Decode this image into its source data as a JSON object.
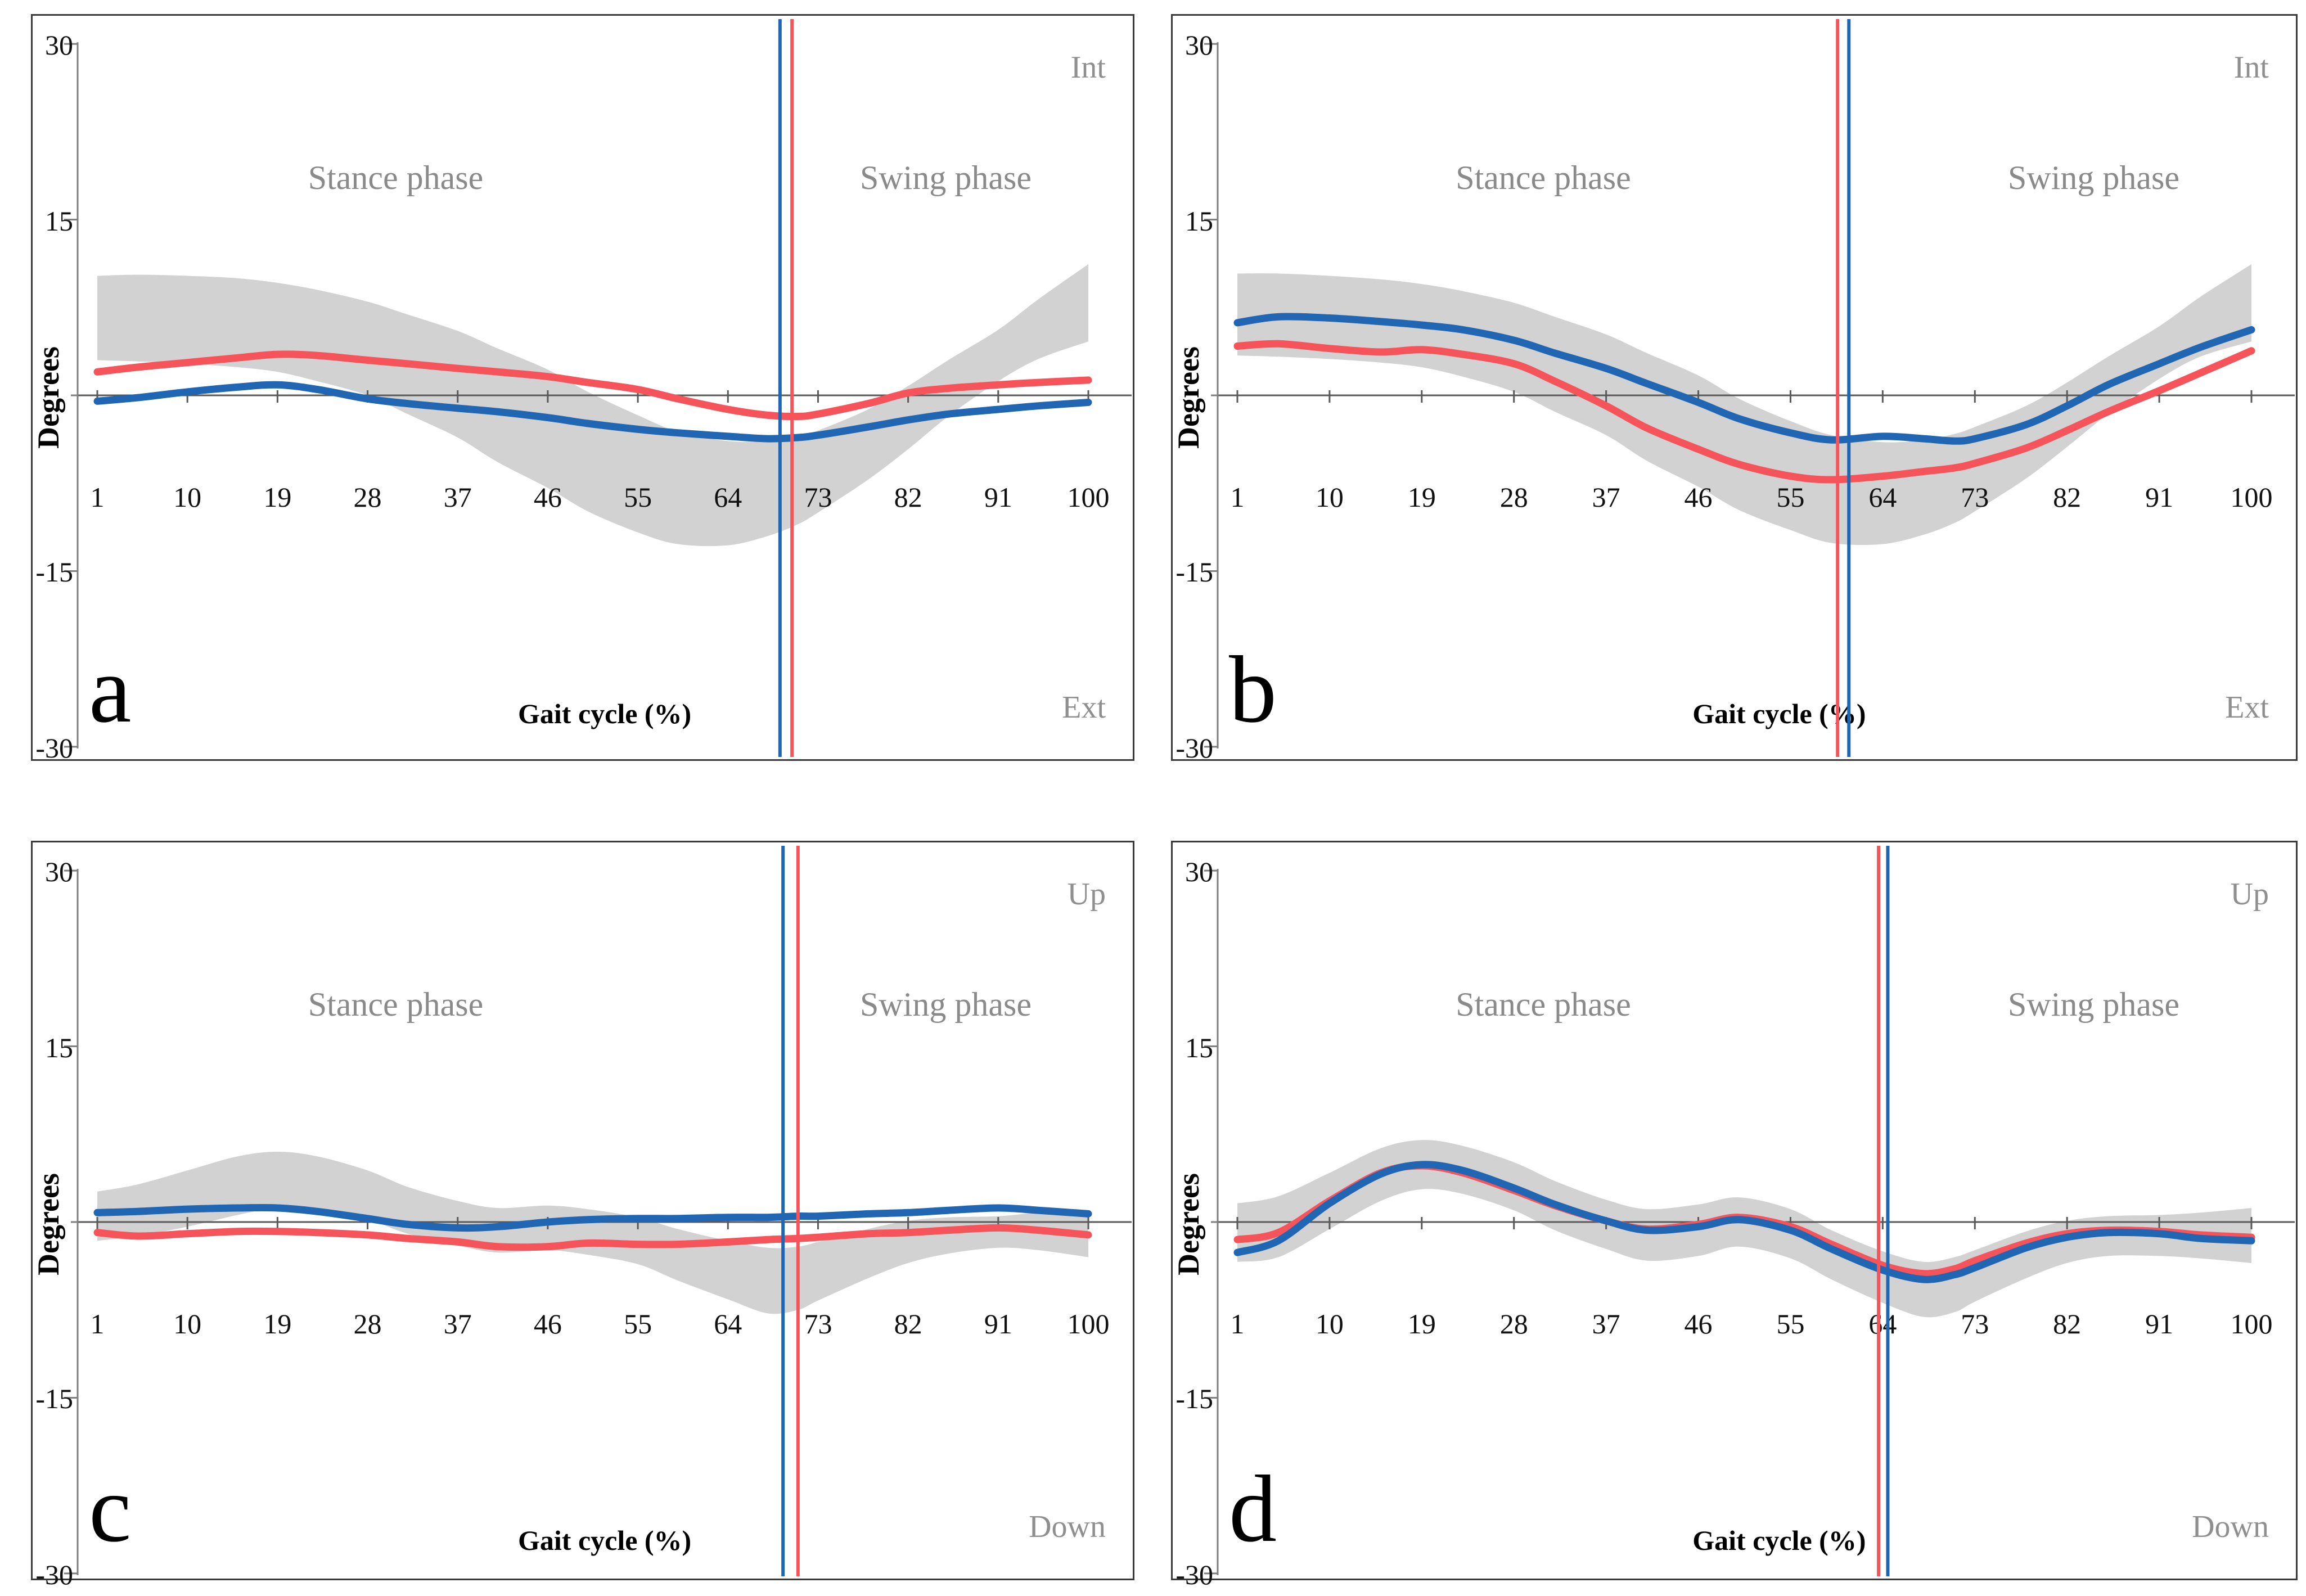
{
  "figure": {
    "background": "#ffffff",
    "description_labels": {
      "stance": "Stance phase",
      "swing": "Swing phase",
      "xlabel": "Gait cycle (%)",
      "ylabel": "Degrees"
    }
  },
  "colors": {
    "red_series": "#f4545a",
    "blue_series": "#2066b3",
    "band": "#d2d2d2",
    "zero_line": "#595959",
    "y_axis": "#7f7f7f",
    "gray_text": "#8a8a8a",
    "panel_border": "#3a3a3a"
  },
  "chart_data": {
    "type": "line",
    "xlabel": "Gait cycle (%)",
    "ylabel": "Degrees",
    "stance_label": "Stance phase",
    "swing_label": "Swing phase",
    "ylim": [
      -30,
      30
    ],
    "y_ticks": [
      30,
      15,
      -15,
      -30
    ],
    "x_ticks": [
      1,
      10,
      19,
      28,
      37,
      46,
      55,
      64,
      73,
      82,
      91,
      100
    ],
    "grid": "off",
    "legend": "none",
    "sample_x": [
      1,
      5,
      10,
      15,
      19,
      23,
      28,
      32,
      37,
      41,
      46,
      50,
      55,
      59,
      64,
      68,
      71,
      73,
      78,
      82,
      86,
      91,
      95,
      100
    ],
    "panels": [
      {
        "id": "a",
        "letter": "a",
        "top_right": "Int",
        "bottom_right": "Ext",
        "band": {
          "upper": [
            10.2,
            10.3,
            10.2,
            10.0,
            9.6,
            9.0,
            8.0,
            6.9,
            5.5,
            4.0,
            2.2,
            0.3,
            -1.7,
            -3.1,
            -3.9,
            -3.9,
            -3.5,
            -3.0,
            -1.2,
            0.8,
            3.0,
            5.6,
            8.2,
            11.2
          ],
          "lower": [
            3.0,
            2.9,
            2.7,
            2.4,
            2.0,
            1.2,
            0.0,
            -1.6,
            -3.6,
            -5.7,
            -7.9,
            -9.9,
            -11.7,
            -12.7,
            -12.8,
            -12.0,
            -11.0,
            -10.0,
            -7.2,
            -4.6,
            -1.8,
            1.2,
            3.1,
            4.6
          ]
        },
        "series": [
          {
            "name": "red",
            "values": [
              2.0,
              2.4,
              2.8,
              3.2,
              3.5,
              3.4,
              3.0,
              2.7,
              2.3,
              2.0,
              1.6,
              1.1,
              0.5,
              -0.3,
              -1.2,
              -1.7,
              -1.8,
              -1.6,
              -0.7,
              0.2,
              0.6,
              0.9,
              1.1,
              1.3
            ]
          },
          {
            "name": "blue",
            "values": [
              -0.5,
              -0.2,
              0.3,
              0.7,
              0.9,
              0.5,
              -0.3,
              -0.7,
              -1.1,
              -1.4,
              -1.9,
              -2.4,
              -2.9,
              -3.2,
              -3.5,
              -3.7,
              -3.6,
              -3.4,
              -2.7,
              -2.1,
              -1.6,
              -1.2,
              -0.9,
              -0.6
            ]
          }
        ],
        "vlines": [
          {
            "name": "blue",
            "x": 69.2
          },
          {
            "name": "red",
            "x": 70.4
          }
        ]
      },
      {
        "id": "b",
        "letter": "b",
        "top_right": "Int",
        "bottom_right": "Ext",
        "band": {
          "upper": [
            10.4,
            10.4,
            10.2,
            9.9,
            9.5,
            8.9,
            7.9,
            6.7,
            5.2,
            3.6,
            1.7,
            -0.3,
            -2.2,
            -3.4,
            -4.0,
            -3.8,
            -3.3,
            -2.7,
            -0.9,
            1.1,
            3.3,
            5.9,
            8.4,
            11.2
          ],
          "lower": [
            3.4,
            3.3,
            3.1,
            2.8,
            2.4,
            1.6,
            0.3,
            -1.4,
            -3.4,
            -5.6,
            -7.8,
            -9.8,
            -11.5,
            -12.6,
            -12.7,
            -11.9,
            -10.9,
            -9.9,
            -7.1,
            -4.4,
            -1.6,
            1.4,
            3.3,
            4.6
          ]
        },
        "series": [
          {
            "name": "red",
            "values": [
              4.2,
              4.4,
              4.0,
              3.7,
              3.9,
              3.5,
              2.7,
              1.2,
              -0.9,
              -2.8,
              -4.6,
              -5.9,
              -6.9,
              -7.2,
              -6.9,
              -6.5,
              -6.2,
              -5.8,
              -4.5,
              -3.0,
              -1.4,
              0.4,
              1.9,
              3.8
            ]
          },
          {
            "name": "blue",
            "values": [
              6.2,
              6.7,
              6.6,
              6.3,
              6.0,
              5.6,
              4.7,
              3.6,
              2.3,
              1.0,
              -0.6,
              -2.0,
              -3.2,
              -3.8,
              -3.5,
              -3.7,
              -3.9,
              -3.7,
              -2.5,
              -0.9,
              0.9,
              2.7,
              4.1,
              5.6
            ]
          }
        ],
        "vlines": [
          {
            "name": "red",
            "x": 59.6
          },
          {
            "name": "blue",
            "x": 60.7
          }
        ]
      },
      {
        "id": "c",
        "letter": "c",
        "top_right": "Up",
        "bottom_right": "Down",
        "band": {
          "upper": [
            2.6,
            3.2,
            4.4,
            5.6,
            6.0,
            5.6,
            4.4,
            3.0,
            1.8,
            1.2,
            1.4,
            1.1,
            0.4,
            -0.6,
            -1.6,
            -2.2,
            -2.1,
            -1.7,
            -0.6,
            0.1,
            0.4,
            0.5,
            0.8,
            1.0
          ],
          "lower": [
            -1.6,
            -1.2,
            -0.4,
            0.6,
            1.2,
            1.0,
            0.2,
            -1.0,
            -2.0,
            -2.6,
            -2.4,
            -2.8,
            -3.6,
            -5.0,
            -6.6,
            -7.8,
            -7.5,
            -6.7,
            -4.8,
            -3.5,
            -2.7,
            -2.2,
            -2.4,
            -3.0
          ]
        },
        "series": [
          {
            "name": "red",
            "values": [
              -0.9,
              -1.2,
              -1.0,
              -0.8,
              -0.8,
              -0.9,
              -1.1,
              -1.4,
              -1.7,
              -2.1,
              -2.1,
              -1.8,
              -1.9,
              -1.9,
              -1.7,
              -1.5,
              -1.4,
              -1.3,
              -1.0,
              -0.9,
              -0.7,
              -0.5,
              -0.7,
              -1.1
            ]
          },
          {
            "name": "blue",
            "values": [
              0.8,
              0.9,
              1.1,
              1.2,
              1.2,
              0.9,
              0.3,
              -0.2,
              -0.5,
              -0.4,
              0.0,
              0.2,
              0.3,
              0.3,
              0.4,
              0.4,
              0.5,
              0.5,
              0.7,
              0.8,
              1.0,
              1.2,
              1.0,
              0.7
            ]
          }
        ],
        "vlines": [
          {
            "name": "blue",
            "x": 69.5
          },
          {
            "name": "red",
            "x": 71.0
          }
        ]
      },
      {
        "id": "d",
        "letter": "d",
        "top_right": "Up",
        "bottom_right": "Down",
        "band": {
          "upper": [
            1.6,
            2.2,
            4.2,
            6.3,
            7.0,
            6.5,
            5.1,
            3.5,
            1.9,
            1.1,
            1.5,
            2.1,
            1.1,
            -0.7,
            -2.5,
            -3.4,
            -3.0,
            -2.4,
            -0.8,
            0.1,
            0.5,
            0.6,
            0.8,
            1.2
          ],
          "lower": [
            -3.4,
            -3.0,
            -0.6,
            1.8,
            2.8,
            2.4,
            1.0,
            -0.7,
            -2.3,
            -3.3,
            -2.9,
            -2.1,
            -3.1,
            -4.9,
            -6.9,
            -8.1,
            -7.7,
            -6.8,
            -4.8,
            -3.5,
            -2.9,
            -2.9,
            -3.1,
            -3.5
          ]
        },
        "series": [
          {
            "name": "red",
            "values": [
              -1.5,
              -0.9,
              1.8,
              4.2,
              4.8,
              4.2,
              2.7,
              1.4,
              0.1,
              -0.6,
              -0.2,
              0.4,
              -0.4,
              -1.9,
              -3.7,
              -4.4,
              -4.0,
              -3.3,
              -1.8,
              -1.0,
              -0.7,
              -0.8,
              -1.1,
              -1.3
            ]
          },
          {
            "name": "blue",
            "values": [
              -2.6,
              -1.6,
              1.6,
              4.1,
              4.9,
              4.4,
              2.9,
              1.5,
              0.1,
              -0.7,
              -0.4,
              0.2,
              -0.7,
              -2.3,
              -4.1,
              -4.9,
              -4.5,
              -3.9,
              -2.2,
              -1.3,
              -0.9,
              -1.0,
              -1.4,
              -1.6
            ]
          }
        ],
        "vlines": [
          {
            "name": "red",
            "x": 63.6
          },
          {
            "name": "blue",
            "x": 64.5
          }
        ]
      }
    ]
  }
}
